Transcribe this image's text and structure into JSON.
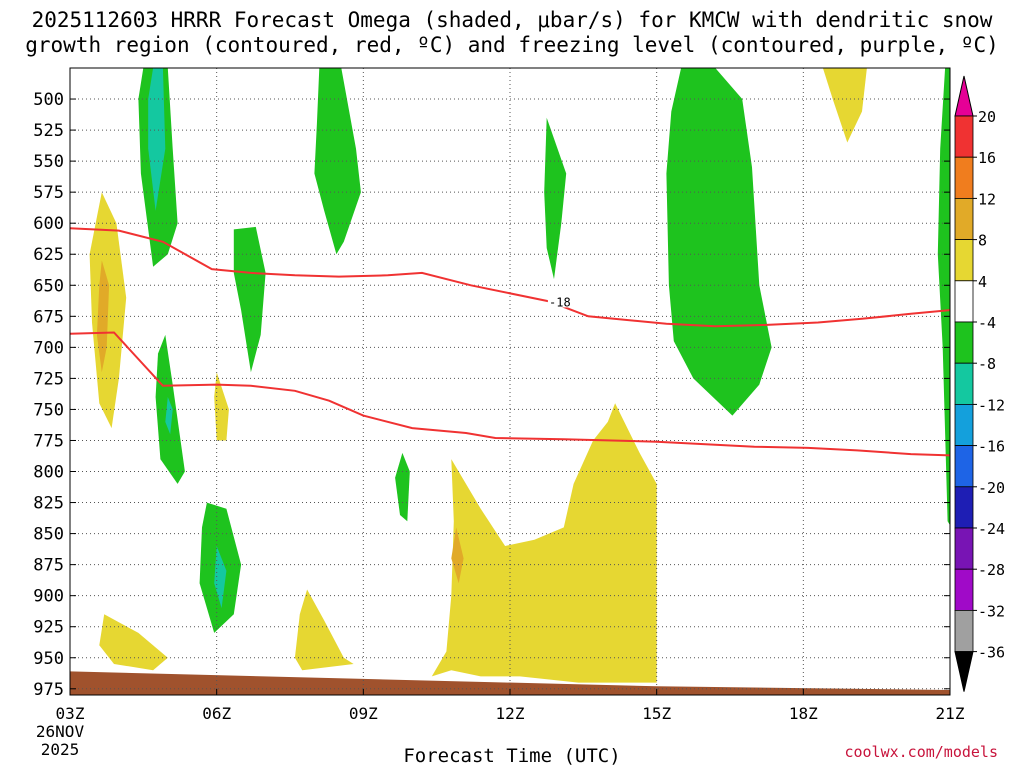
{
  "title_line1": "2025112603 HRRR Forecast Omega (shaded, μbar/s) for KMCW with dendritic snow",
  "title_line2": "growth region (contoured, red, ºC) and freezing level (contoured, purple, ºC)",
  "credit": "coolwx.com/models",
  "chart_data": {
    "type": "contour-time-height",
    "xlabel": "Forecast Time (UTC)",
    "x_ticks": [
      {
        "hour": 0,
        "label": "03Z"
      },
      {
        "hour": 3,
        "label": "06Z"
      },
      {
        "hour": 6,
        "label": "09Z"
      },
      {
        "hour": 9,
        "label": "12Z"
      },
      {
        "hour": 12,
        "label": "15Z"
      },
      {
        "hour": 15,
        "label": "18Z"
      },
      {
        "hour": 18,
        "label": "21Z"
      }
    ],
    "date_label_line1": "26NOV",
    "date_label_line2": "2025",
    "y_ticks": [
      500,
      525,
      550,
      575,
      600,
      625,
      650,
      675,
      700,
      725,
      750,
      775,
      800,
      825,
      850,
      875,
      900,
      925,
      950,
      975
    ],
    "xlim_hours": [
      0,
      18
    ],
    "ylim_hpa": [
      475,
      980
    ],
    "grid": true,
    "colorbar": {
      "labels": [
        "20",
        "16",
        "12",
        "8",
        "4",
        "-4",
        "-8",
        "-12",
        "-16",
        "-20",
        "-24",
        "-28",
        "-32",
        "-36"
      ],
      "colors": [
        "#e60096",
        "#f03232",
        "#f07d1e",
        "#e1aa28",
        "#e6d732",
        "#ffffff",
        "#1ec31e",
        "#14c8a0",
        "#14a0dc",
        "#1e64e6",
        "#1e1eb4",
        "#7814b4",
        "#a00ac8",
        "#a0a0a0",
        "#000000"
      ]
    },
    "omega_regions": [
      {
        "class": "g",
        "pts": [
          [
            1.5,
            475
          ],
          [
            2.0,
            475
          ],
          [
            2.1,
            540
          ],
          [
            2.2,
            600
          ],
          [
            2.0,
            625
          ],
          [
            1.7,
            635
          ],
          [
            1.45,
            560
          ],
          [
            1.4,
            500
          ]
        ]
      },
      {
        "class": "t",
        "pts": [
          [
            1.7,
            475
          ],
          [
            1.9,
            475
          ],
          [
            1.95,
            540
          ],
          [
            1.75,
            590
          ],
          [
            1.6,
            540
          ],
          [
            1.6,
            500
          ]
        ]
      },
      {
        "class": "g",
        "pts": [
          [
            3.35,
            605
          ],
          [
            3.8,
            603
          ],
          [
            4.0,
            640
          ],
          [
            3.9,
            690
          ],
          [
            3.7,
            720
          ],
          [
            3.5,
            670
          ],
          [
            3.35,
            640
          ]
        ]
      },
      {
        "class": "g",
        "pts": [
          [
            5.1,
            475
          ],
          [
            5.55,
            475
          ],
          [
            5.85,
            540
          ],
          [
            5.95,
            575
          ],
          [
            5.6,
            615
          ],
          [
            5.45,
            625
          ],
          [
            5.2,
            590
          ],
          [
            5.0,
            560
          ],
          [
            5.05,
            520
          ]
        ]
      },
      {
        "class": "g",
        "pts": [
          [
            1.95,
            690
          ],
          [
            2.1,
            730
          ],
          [
            2.35,
            800
          ],
          [
            2.2,
            810
          ],
          [
            1.85,
            790
          ],
          [
            1.75,
            740
          ],
          [
            1.8,
            705
          ]
        ]
      },
      {
        "class": "t",
        "pts": [
          [
            2.0,
            740
          ],
          [
            2.1,
            750
          ],
          [
            2.05,
            770
          ],
          [
            1.95,
            760
          ]
        ]
      },
      {
        "class": "g",
        "pts": [
          [
            2.8,
            825
          ],
          [
            3.2,
            830
          ],
          [
            3.5,
            875
          ],
          [
            3.35,
            915
          ],
          [
            2.95,
            930
          ],
          [
            2.65,
            890
          ],
          [
            2.7,
            845
          ]
        ]
      },
      {
        "class": "t",
        "pts": [
          [
            3.0,
            860
          ],
          [
            3.2,
            880
          ],
          [
            3.1,
            910
          ],
          [
            2.95,
            890
          ]
        ]
      },
      {
        "class": "g",
        "pts": [
          [
            6.8,
            785
          ],
          [
            6.95,
            800
          ],
          [
            6.9,
            840
          ],
          [
            6.75,
            835
          ],
          [
            6.65,
            805
          ]
        ]
      },
      {
        "class": "g",
        "pts": [
          [
            9.75,
            515
          ],
          [
            10.15,
            560
          ],
          [
            10.05,
            600
          ],
          [
            9.9,
            645
          ],
          [
            9.75,
            620
          ],
          [
            9.7,
            575
          ]
        ]
      },
      {
        "class": "g",
        "pts": [
          [
            12.5,
            475
          ],
          [
            13.2,
            475
          ],
          [
            13.75,
            500
          ],
          [
            13.95,
            555
          ],
          [
            14.1,
            650
          ],
          [
            14.35,
            700
          ],
          [
            14.1,
            730
          ],
          [
            13.55,
            755
          ],
          [
            12.75,
            725
          ],
          [
            12.35,
            695
          ],
          [
            12.25,
            650
          ],
          [
            12.2,
            560
          ],
          [
            12.3,
            510
          ]
        ]
      },
      {
        "class": "g",
        "pts": [
          [
            17.9,
            475
          ],
          [
            18.1,
            475
          ],
          [
            18.1,
            850
          ],
          [
            17.95,
            840
          ],
          [
            17.85,
            700
          ],
          [
            17.75,
            625
          ],
          [
            17.8,
            540
          ]
        ]
      },
      {
        "class": "y",
        "pts": [
          [
            0.65,
            575
          ],
          [
            0.95,
            600
          ],
          [
            1.15,
            660
          ],
          [
            1.0,
            725
          ],
          [
            0.85,
            765
          ],
          [
            0.6,
            745
          ],
          [
            0.45,
            680
          ],
          [
            0.4,
            625
          ],
          [
            0.55,
            595
          ]
        ]
      },
      {
        "class": "o",
        "pts": [
          [
            0.65,
            630
          ],
          [
            0.8,
            650
          ],
          [
            0.75,
            700
          ],
          [
            0.65,
            720
          ],
          [
            0.55,
            690
          ],
          [
            0.6,
            650
          ]
        ]
      },
      {
        "class": "y",
        "pts": [
          [
            3.0,
            720
          ],
          [
            3.25,
            750
          ],
          [
            3.2,
            775
          ],
          [
            3.0,
            775
          ],
          [
            2.95,
            740
          ]
        ]
      },
      {
        "class": "y",
        "pts": [
          [
            0.7,
            915
          ],
          [
            1.4,
            930
          ],
          [
            2.0,
            950
          ],
          [
            1.7,
            960
          ],
          [
            0.9,
            955
          ],
          [
            0.6,
            940
          ]
        ]
      },
      {
        "class": "y",
        "pts": [
          [
            4.85,
            895
          ],
          [
            5.2,
            920
          ],
          [
            5.6,
            950
          ],
          [
            5.8,
            955
          ],
          [
            4.75,
            960
          ],
          [
            4.6,
            950
          ],
          [
            4.7,
            915
          ]
        ]
      },
      {
        "class": "y",
        "pts": [
          [
            7.8,
            790
          ],
          [
            8.4,
            830
          ],
          [
            8.9,
            860
          ],
          [
            9.5,
            855
          ],
          [
            10.1,
            845
          ],
          [
            10.3,
            810
          ],
          [
            10.7,
            775
          ],
          [
            11.0,
            760
          ],
          [
            11.15,
            745
          ],
          [
            11.65,
            785
          ],
          [
            12.0,
            810
          ],
          [
            12.0,
            970
          ],
          [
            10.4,
            970
          ],
          [
            9.2,
            965
          ],
          [
            8.4,
            965
          ],
          [
            7.8,
            960
          ],
          [
            7.4,
            965
          ],
          [
            7.7,
            945
          ],
          [
            7.8,
            900
          ],
          [
            7.85,
            840
          ]
        ]
      },
      {
        "class": "o",
        "pts": [
          [
            7.9,
            845
          ],
          [
            8.05,
            870
          ],
          [
            7.95,
            890
          ],
          [
            7.8,
            870
          ]
        ]
      },
      {
        "class": "y",
        "pts": [
          [
            15.4,
            475
          ],
          [
            16.3,
            475
          ],
          [
            16.2,
            510
          ],
          [
            15.9,
            535
          ],
          [
            15.6,
            500
          ]
        ]
      }
    ],
    "dgz_contours": [
      {
        "label": "-18",
        "hours": [
          0,
          1,
          1.9,
          2.9,
          3.7,
          4.6,
          5.5,
          6.5,
          7.2,
          8.2,
          9.8,
          10.6,
          12.2,
          13.2,
          14.2,
          15.3,
          16.2,
          17.2,
          18.0
        ],
        "hpa": [
          604,
          606,
          615,
          637,
          640,
          642,
          643,
          642,
          640,
          650,
          663,
          675,
          681,
          683,
          682,
          680,
          677,
          673,
          670
        ]
      },
      {
        "label": "",
        "hours": [
          0,
          0.9,
          1.9,
          3.0,
          3.7,
          4.6,
          5.3,
          6.0,
          7.0,
          8.1,
          8.7,
          10.1,
          12.0,
          13.0,
          14.0,
          15.1,
          16.1,
          17.2,
          18.0
        ],
        "hpa": [
          689,
          688,
          731,
          730,
          731,
          735,
          743,
          755,
          765,
          769,
          773,
          774,
          776,
          778,
          780,
          781,
          783,
          786,
          787
        ]
      }
    ],
    "terrain_hpa": [
      [
        0,
        961
      ],
      [
        6.0,
        967
      ],
      [
        12.0,
        973
      ],
      [
        18.0,
        976
      ]
    ]
  }
}
